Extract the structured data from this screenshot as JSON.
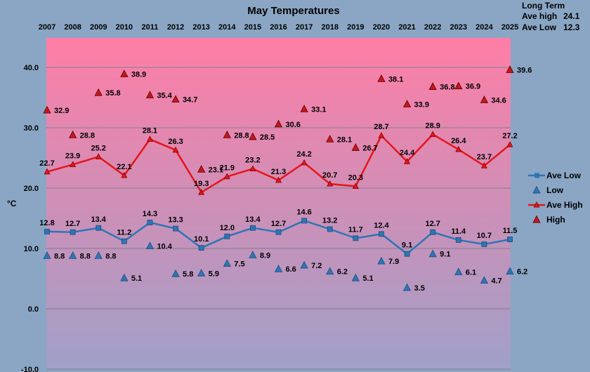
{
  "chart_data": {
    "type": "line",
    "title": "May Temperatures",
    "ylabel": "°C",
    "ylim": [
      -10,
      45
    ],
    "yticks": [
      -10,
      0,
      10,
      20,
      30,
      40
    ],
    "ytick_labels": [
      "-10.0",
      "0.0",
      "10.0",
      "20.0",
      "30.0",
      "40.0"
    ],
    "categories": [
      "2007",
      "2008",
      "2009",
      "2010",
      "2011",
      "2012",
      "2013",
      "2014",
      "2015",
      "2016",
      "2017",
      "2018",
      "2019",
      "2020",
      "2021",
      "2022",
      "2023",
      "2024",
      "2025"
    ],
    "series": [
      {
        "name": "Ave Low",
        "kind": "line",
        "color": "#2e75b6",
        "values": [
          12.8,
          12.7,
          13.4,
          11.2,
          14.3,
          13.3,
          10.1,
          12.0,
          13.4,
          12.7,
          14.6,
          13.2,
          11.7,
          12.4,
          9.1,
          12.7,
          11.4,
          10.7,
          11.5
        ],
        "labels": [
          "12.8",
          "12.7",
          "13.4",
          "11.2",
          "14.3",
          "13.3",
          "10.1",
          "12.0",
          "13.4",
          "12.7",
          "14.6",
          "13.2",
          "11.7",
          "12.4",
          "9.1",
          "12.7",
          "11.4",
          "10.7",
          "11.5"
        ]
      },
      {
        "name": "Low",
        "kind": "marker",
        "color": "#2e75b6",
        "values": [
          8.8,
          8.8,
          8.8,
          5.1,
          10.4,
          5.8,
          5.9,
          7.5,
          8.9,
          6.6,
          7.2,
          6.2,
          5.1,
          7.9,
          3.5,
          9.1,
          6.1,
          4.7,
          6.2
        ],
        "labels": [
          "8.8",
          "8.8",
          "8.8",
          "5.1",
          "10.4",
          "5.8",
          "5.9",
          "7.5",
          "8.9",
          "6.6",
          "7.2",
          "6.2",
          "5.1",
          "7.9",
          "3.5",
          "9.1",
          "6.1",
          "4.7",
          "6.2"
        ]
      },
      {
        "name": "Ave High",
        "kind": "line",
        "color": "#e3161c",
        "values": [
          22.7,
          23.9,
          25.2,
          22.1,
          28.1,
          26.3,
          19.3,
          21.9,
          23.2,
          21.3,
          24.2,
          20.7,
          20.3,
          28.7,
          24.4,
          28.9,
          26.4,
          23.7,
          27.2
        ],
        "labels": [
          "22.7",
          "23.9",
          "25.2",
          "22.1",
          "28.1",
          "26.3",
          "19.3",
          "21.9",
          "23.2",
          "21.3",
          "24.2",
          "20.7",
          "20.3",
          "28.7",
          "24.4",
          "28.9",
          "26.4",
          "23.7",
          "27.2"
        ]
      },
      {
        "name": "High",
        "kind": "marker",
        "color": "#c8161c",
        "values": [
          32.9,
          28.8,
          35.8,
          38.9,
          35.4,
          34.7,
          23.1,
          28.8,
          28.5,
          30.6,
          33.1,
          28.1,
          26.7,
          38.1,
          33.9,
          36.8,
          36.9,
          34.6,
          39.6
        ],
        "labels": [
          "32.9",
          "28.8",
          "35.8",
          "38.9",
          "35.4",
          "34.7",
          "23.1",
          "28.8",
          "28.5",
          "30.6",
          "33.1",
          "28.1",
          "26.7",
          "38.1",
          "33.9",
          "36.8",
          "36.9",
          "34.6",
          "39.6"
        ]
      }
    ],
    "legend": [
      "Ave Low",
      "Low",
      "Ave High",
      "High"
    ],
    "legend_position": "right",
    "grid": true
  },
  "long_term": {
    "title": "Long Term",
    "ave_high_label": "Ave high",
    "ave_high_value": "24.1",
    "ave_low_label": "Ave Low",
    "ave_low_value": "12.3"
  },
  "colors": {
    "plot_top": "#ff7ea6",
    "plot_bottom": "#9fa0c8",
    "background": "#8aa6c4"
  }
}
